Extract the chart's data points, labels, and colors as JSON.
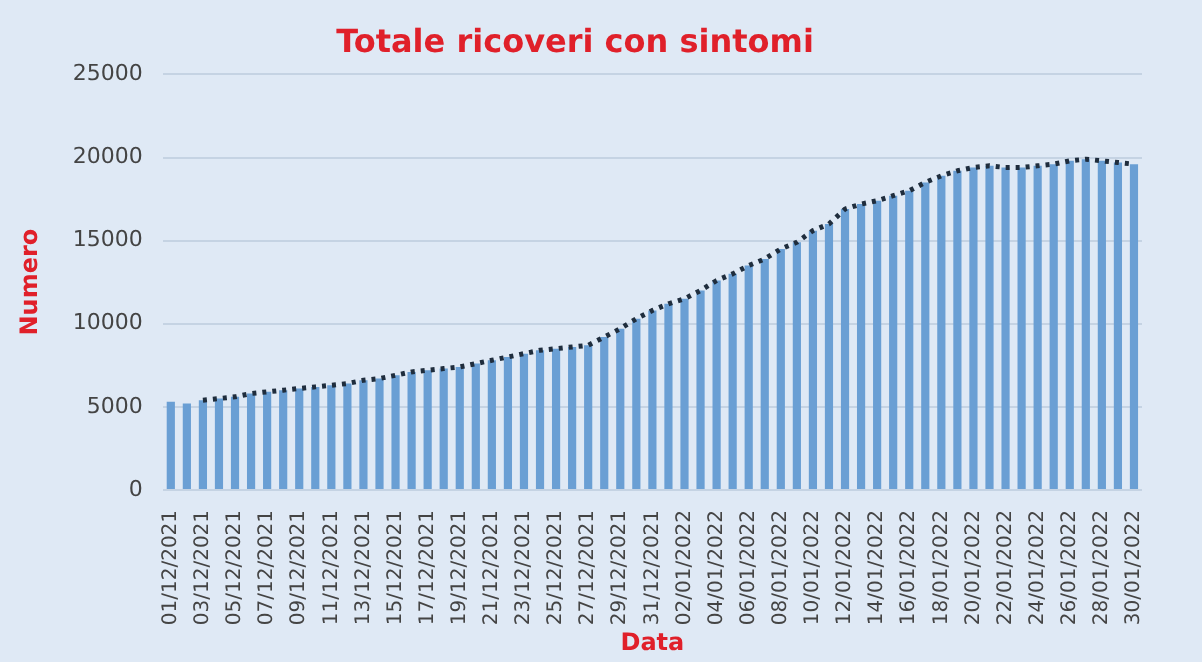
{
  "chart_data": {
    "type": "bar",
    "title": "Totale ricoveri con sintomi",
    "xlabel": "Data",
    "ylabel": "Numero",
    "categories": [
      "01/12/2021",
      null,
      "03/12/2021",
      null,
      "05/12/2021",
      null,
      "07/12/2021",
      null,
      "09/12/2021",
      null,
      "11/12/2021",
      null,
      "13/12/2021",
      null,
      "15/12/2021",
      null,
      "17/12/2021",
      null,
      "19/12/2021",
      null,
      "21/12/2021",
      null,
      "23/12/2021",
      null,
      "25/12/2021",
      null,
      "27/12/2021",
      null,
      "29/12/2021",
      null,
      "31/12/2021",
      null,
      "02/01/2022",
      null,
      "04/01/2022",
      null,
      "06/01/2022",
      null,
      "08/01/2022",
      null,
      "10/01/2022",
      null,
      "12/01/2022",
      null,
      "14/01/2022",
      null,
      "16/01/2022",
      null,
      "18/01/2022",
      null,
      "20/01/2022",
      null,
      "22/01/2022",
      null,
      "24/01/2022",
      null,
      "26/01/2022",
      null,
      "28/01/2022",
      null,
      "30/01/2022"
    ],
    "series": [
      {
        "color": "#6a9fd4",
        "values": [
          5300,
          5200,
          5400,
          5500,
          5600,
          5800,
          5900,
          6000,
          6100,
          6200,
          6300,
          6400,
          6600,
          6700,
          6900,
          7100,
          7200,
          7300,
          7400,
          7600,
          7800,
          8000,
          8200,
          8400,
          8500,
          8600,
          8700,
          9200,
          9700,
          10300,
          10800,
          11200,
          11500,
          12000,
          12600,
          13000,
          13500,
          13900,
          14500,
          14900,
          15600,
          16000,
          16900,
          17200,
          17400,
          17700,
          18000,
          18500,
          18900,
          19200,
          19400,
          19500,
          19400,
          19400,
          19500,
          19600,
          19800,
          19900,
          19800,
          19700,
          19600
        ]
      },
      {
        "type": "line",
        "color": "#1f2d3d",
        "line_style": "dotted",
        "marker": "none",
        "values": [
          null,
          null,
          5400,
          5500,
          5600,
          5800,
          5900,
          6000,
          6100,
          6200,
          6300,
          6400,
          6600,
          6700,
          6900,
          7100,
          7200,
          7300,
          7400,
          7600,
          7800,
          8000,
          8200,
          8400,
          8500,
          8600,
          8700,
          9200,
          9700,
          10300,
          10800,
          11200,
          11500,
          12000,
          12600,
          13000,
          13500,
          13900,
          14500,
          14900,
          15600,
          16000,
          16900,
          17200,
          17400,
          17700,
          18000,
          18500,
          18900,
          19200,
          19400,
          19500,
          19400,
          19400,
          19500,
          19600,
          19800,
          19900,
          19800,
          19700,
          19600
        ]
      }
    ],
    "ylim": [
      0,
      25000
    ],
    "yticks": [
      0,
      5000,
      10000,
      15000,
      20000,
      25000
    ],
    "grid": "y",
    "legend": false
  }
}
